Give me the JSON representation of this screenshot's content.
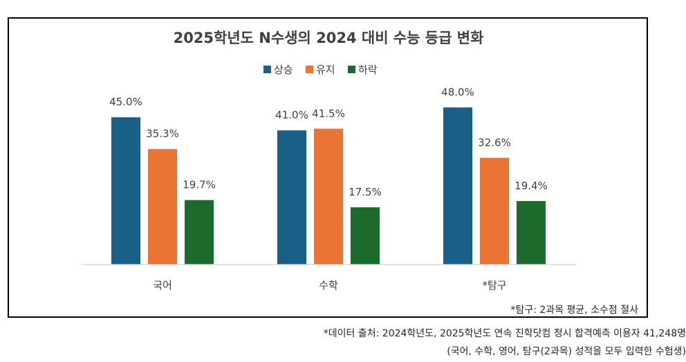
{
  "chart_data": {
    "type": "bar",
    "title": "2025학년도 N수생의 2024 대비 수능 등급 변화",
    "categories": [
      "국어",
      "수학",
      "*탐구"
    ],
    "series": [
      {
        "name": "상승",
        "color": "#1a5f85",
        "values": [
          45.0,
          41.0,
          48.0
        ],
        "labels": [
          "45.0%",
          "41.0%",
          "48.0%"
        ]
      },
      {
        "name": "유지",
        "color": "#ea7434",
        "values": [
          35.3,
          41.5,
          32.6
        ],
        "labels": [
          "35.3%",
          "41.5%",
          "32.6%"
        ]
      },
      {
        "name": "하락",
        "color": "#1d6b2c",
        "values": [
          19.7,
          17.5,
          19.4
        ],
        "labels": [
          "19.7%",
          "17.5%",
          "19.4%"
        ]
      }
    ],
    "xlabel": "",
    "ylabel": "",
    "ylim": [
      0,
      55
    ],
    "grid": false,
    "legend_position": "top-center"
  },
  "footnotes": {
    "inner": "*탐구: 2과목 평균, 소수점 절사",
    "source_line1": "*데이터 출처: 2024학년도, 2025학년도 연속 진학닷컴 정시 합격예측 이용자 41,248명",
    "source_line2": "(국어, 수학, 영어, 탐구(2과목) 성적을 모두 입력한 수험생)"
  }
}
